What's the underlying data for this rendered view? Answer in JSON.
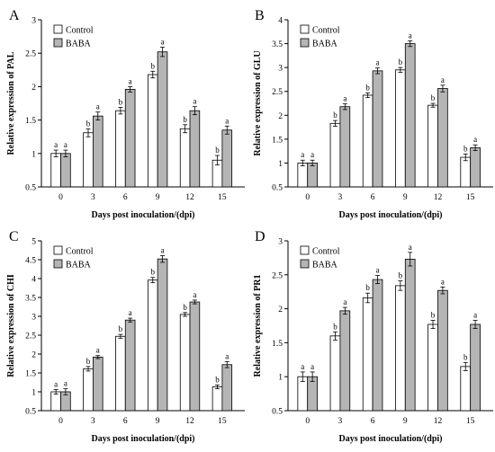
{
  "legend": [
    "Control",
    "BABA"
  ],
  "colors": {
    "control": "#ffffff",
    "baba": "#b5b5b5",
    "stroke": "#000000"
  },
  "chart_data": [
    {
      "type": "bar",
      "panel": "A",
      "ylabel": "Relative expression of PAL",
      "xlabel": "Days post inoculation/(dpi)",
      "categories": [
        "0",
        "3",
        "6",
        "9",
        "12",
        "15"
      ],
      "ylim": [
        0.5,
        3
      ],
      "yticks": [
        "0.5",
        "1",
        "1.5",
        "2",
        "2.5",
        "3"
      ],
      "series": [
        {
          "name": "Control",
          "values": [
            1.0,
            1.31,
            1.64,
            2.18,
            1.37,
            0.9
          ],
          "errors": [
            0.05,
            0.06,
            0.05,
            0.05,
            0.06,
            0.07
          ],
          "labels": [
            "a",
            "b",
            "b",
            "b",
            "b",
            "b"
          ]
        },
        {
          "name": "BABA",
          "values": [
            1.0,
            1.56,
            1.96,
            2.52,
            1.64,
            1.35
          ],
          "errors": [
            0.05,
            0.06,
            0.04,
            0.07,
            0.06,
            0.06
          ],
          "labels": [
            "a",
            "a",
            "a",
            "a",
            "a",
            "a"
          ]
        }
      ]
    },
    {
      "type": "bar",
      "panel": "B",
      "ylabel": "Relative expression of GLU",
      "xlabel": "Days post inoculation/(dpi)",
      "categories": [
        "0",
        "3",
        "6",
        "9",
        "12",
        "15"
      ],
      "ylim": [
        0.5,
        4
      ],
      "yticks": [
        "0.5",
        "1",
        "1.5",
        "2",
        "2.5",
        "3",
        "3.5",
        "4"
      ],
      "series": [
        {
          "name": "Control",
          "values": [
            1.0,
            1.83,
            2.42,
            2.95,
            2.21,
            1.12
          ],
          "errors": [
            0.06,
            0.06,
            0.05,
            0.05,
            0.04,
            0.07
          ],
          "labels": [
            "a",
            "b",
            "b",
            "b",
            "b",
            "b"
          ]
        },
        {
          "name": "BABA",
          "values": [
            1.0,
            2.18,
            2.93,
            3.5,
            2.56,
            1.32
          ],
          "errors": [
            0.06,
            0.06,
            0.06,
            0.06,
            0.07,
            0.06
          ],
          "labels": [
            "a",
            "a",
            "a",
            "a",
            "a",
            "a"
          ]
        }
      ]
    },
    {
      "type": "bar",
      "panel": "C",
      "ylabel": "Relative expression of CHI",
      "xlabel": "Days post inoculation/(dpi)",
      "categories": [
        "0",
        "3",
        "6",
        "9",
        "12",
        "15"
      ],
      "ylim": [
        0.5,
        5
      ],
      "yticks": [
        "0.5",
        "1",
        "1.5",
        "2",
        "2.5",
        "3",
        "3.5",
        "4",
        "4.5",
        "5"
      ],
      "series": [
        {
          "name": "Control",
          "values": [
            1.0,
            1.61,
            2.47,
            3.96,
            3.05,
            1.13
          ],
          "errors": [
            0.06,
            0.06,
            0.05,
            0.07,
            0.05,
            0.05
          ],
          "labels": [
            "a",
            "b",
            "b",
            "b",
            "b",
            "b"
          ]
        },
        {
          "name": "BABA",
          "values": [
            1.0,
            1.92,
            2.9,
            4.52,
            3.38,
            1.72
          ],
          "errors": [
            0.08,
            0.04,
            0.05,
            0.09,
            0.05,
            0.08
          ],
          "labels": [
            "a",
            "a",
            "a",
            "a",
            "a",
            "a"
          ]
        }
      ]
    },
    {
      "type": "bar",
      "panel": "D",
      "ylabel": "Relative expression of PR1",
      "xlabel": "Days post inoculation/(dpi)",
      "categories": [
        "0",
        "3",
        "6",
        "9",
        "12",
        "15"
      ],
      "ylim": [
        0.5,
        3
      ],
      "yticks": [
        "0.5",
        "1",
        "1.5",
        "2",
        "2.5",
        "3"
      ],
      "series": [
        {
          "name": "Control",
          "values": [
            1.0,
            1.6,
            2.16,
            2.34,
            1.77,
            1.15
          ],
          "errors": [
            0.07,
            0.06,
            0.07,
            0.07,
            0.06,
            0.06
          ],
          "labels": [
            "a",
            "b",
            "b",
            "b",
            "b",
            "b"
          ]
        },
        {
          "name": "BABA",
          "values": [
            1.0,
            1.97,
            2.43,
            2.73,
            2.27,
            1.77
          ],
          "errors": [
            0.07,
            0.05,
            0.06,
            0.1,
            0.05,
            0.06
          ],
          "labels": [
            "a",
            "a",
            "a",
            "a",
            "a",
            "a"
          ]
        }
      ]
    }
  ]
}
